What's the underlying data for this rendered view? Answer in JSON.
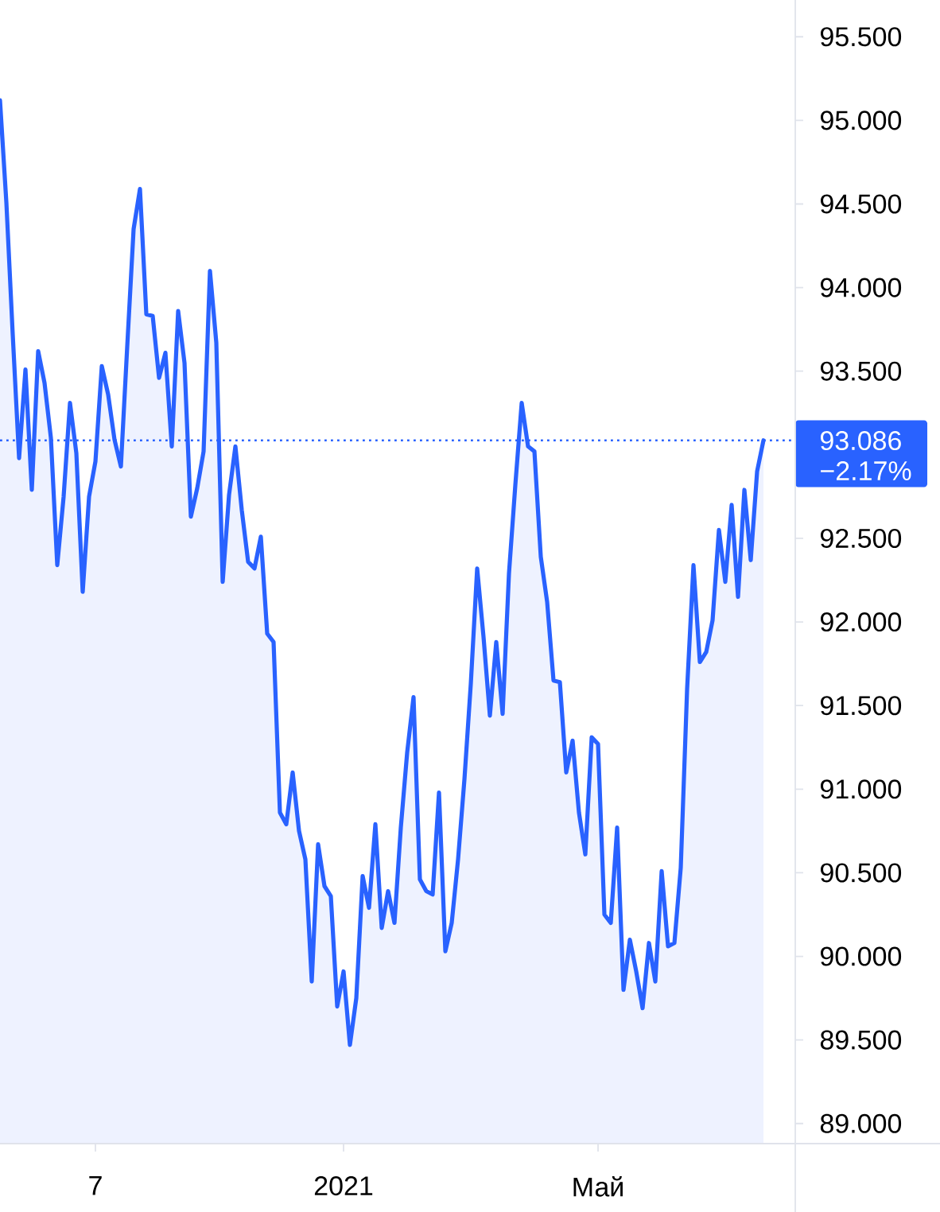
{
  "chart_data": {
    "type": "area",
    "categories": [
      null,
      null,
      null,
      null,
      null,
      null,
      null,
      null,
      null,
      null,
      null,
      null,
      null,
      null,
      null,
      "7",
      null,
      null,
      null,
      null,
      null,
      null,
      null,
      null,
      null,
      null,
      null,
      null,
      null,
      null,
      null,
      null,
      null,
      null,
      null,
      null,
      null,
      null,
      null,
      null,
      null,
      null,
      null,
      null,
      null,
      null,
      null,
      null,
      null,
      null,
      null,
      null,
      null,
      null,
      "2021",
      null,
      null,
      null,
      null,
      null,
      null,
      null,
      null,
      null,
      null,
      null,
      null,
      null,
      null,
      null,
      null,
      null,
      null,
      null,
      null,
      null,
      null,
      null,
      null,
      null,
      null,
      null,
      null,
      null,
      null,
      null,
      null,
      null,
      null,
      null,
      null,
      null,
      null,
      null,
      "Май",
      null,
      null,
      null,
      null,
      null,
      null,
      null,
      null,
      null,
      null,
      null,
      null,
      null,
      null,
      null,
      null,
      null,
      null,
      null,
      null,
      null,
      null,
      null,
      null,
      null,
      null
    ],
    "values": [
      95.12,
      94.51,
      93.72,
      92.98,
      93.51,
      92.79,
      93.62,
      93.43,
      93.1,
      92.34,
      92.75,
      93.31,
      93.01,
      92.18,
      92.75,
      92.96,
      93.53,
      93.36,
      93.09,
      92.93,
      93.65,
      94.35,
      94.59,
      93.84,
      93.83,
      93.46,
      93.61,
      93.05,
      93.86,
      93.55,
      92.63,
      92.8,
      93.02,
      94.1,
      93.67,
      92.24,
      92.76,
      93.05,
      92.67,
      92.36,
      92.32,
      92.51,
      91.93,
      91.88,
      90.86,
      90.79,
      91.1,
      90.75,
      90.58,
      89.85,
      90.67,
      90.42,
      90.36,
      89.7,
      89.91,
      89.47,
      89.75,
      90.48,
      90.29,
      90.79,
      90.17,
      90.39,
      90.2,
      90.77,
      91.22,
      91.55,
      90.46,
      90.39,
      90.37,
      90.98,
      90.03,
      90.2,
      90.58,
      91.06,
      91.63,
      92.32,
      91.91,
      91.44,
      91.88,
      91.45,
      92.29,
      92.82,
      93.31,
      93.05,
      93.02,
      92.39,
      92.12,
      91.65,
      91.64,
      91.1,
      91.29,
      90.86,
      90.61,
      91.31,
      91.27,
      90.25,
      90.2,
      90.77,
      89.8,
      90.1,
      89.91,
      89.69,
      90.08,
      89.85,
      90.51,
      90.06,
      90.08,
      90.53,
      91.6,
      92.34,
      91.76,
      91.82,
      92.01,
      92.55,
      92.24,
      92.7,
      92.15,
      92.79,
      92.37,
      92.9,
      93.086
    ],
    "color": "#2962ff",
    "ylim": [
      88.88,
      95.72
    ],
    "yticks": [
      {
        "value": 89.0,
        "label": "89.000"
      },
      {
        "value": 89.5,
        "label": "89.500"
      },
      {
        "value": 90.0,
        "label": "90.000"
      },
      {
        "value": 90.5,
        "label": "90.500"
      },
      {
        "value": 91.0,
        "label": "91.000"
      },
      {
        "value": 91.5,
        "label": "91.500"
      },
      {
        "value": 92.0,
        "label": "92.000"
      },
      {
        "value": 92.5,
        "label": "92.500"
      },
      {
        "value": 93.5,
        "label": "93.500"
      },
      {
        "value": 94.0,
        "label": "94.000"
      },
      {
        "value": 94.5,
        "label": "94.500"
      },
      {
        "value": 95.0,
        "label": "95.000"
      },
      {
        "value": 95.5,
        "label": "95.500"
      }
    ],
    "ref_lines": [
      {
        "axis": "y",
        "value": 93.086,
        "label": "93.086",
        "color": "#2962ff",
        "line_style": "dotted"
      }
    ],
    "annotations": [
      "−2.17%"
    ]
  }
}
